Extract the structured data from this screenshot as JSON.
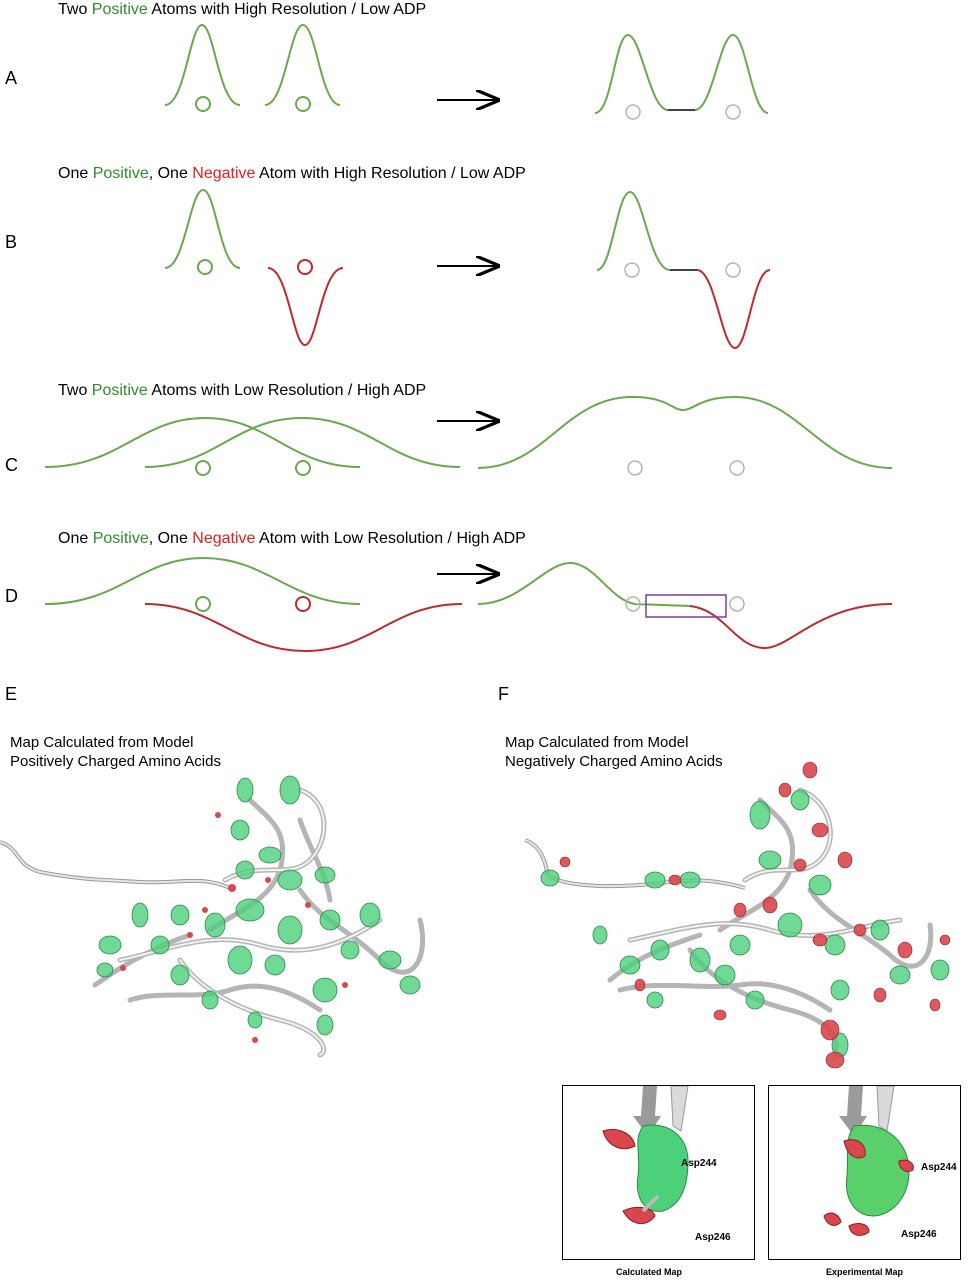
{
  "panels": {
    "A": {
      "letter": "A",
      "title_parts": [
        "Two ",
        "Positive",
        " Atoms with High Resolution / Low ADP"
      ]
    },
    "B": {
      "letter": "B",
      "title_parts": [
        "One ",
        "Positive",
        ", One ",
        "Negative",
        " Atom with High Resolution / Low ADP"
      ]
    },
    "C": {
      "letter": "C",
      "title_parts": [
        "Two ",
        "Positive",
        " Atoms with Low Resolution / High ADP"
      ]
    },
    "D": {
      "letter": "D",
      "title_parts": [
        "One ",
        "Positive",
        ", One ",
        "Negative",
        " Atom with Low Resolution / High ADP"
      ]
    },
    "E": {
      "letter": "E",
      "line1": "Map Calculated from Model",
      "line2": "Positively Charged Amino Acids"
    },
    "F": {
      "letter": "F",
      "line1": "Map Calculated from Model",
      "line2": "Negatively Charged Amino Acids"
    }
  },
  "insets": {
    "calculated": {
      "caption": "Calculated Map",
      "label_top": "Asp244",
      "label_bottom": "Asp246"
    },
    "experimental": {
      "caption": "Experimental Map",
      "label_top": "Asp244",
      "label_bottom": "Asp246"
    }
  },
  "colors": {
    "positive": "#2e8b2e",
    "negative": "#dd1f1f",
    "curve_green": "#6aa84f",
    "curve_red": "#c0282e",
    "atom_gray": "#b5b5b5",
    "map_green": "#4cd07a",
    "map_red": "#d9474d",
    "box": "#7b3fa0"
  }
}
